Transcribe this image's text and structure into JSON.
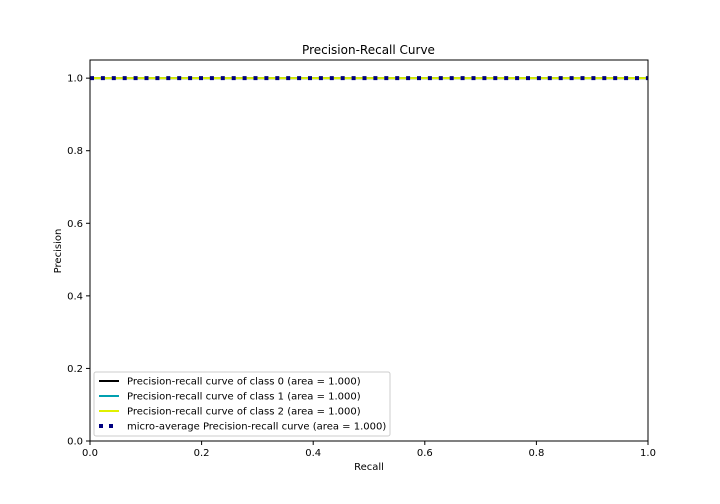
{
  "chart_data": {
    "type": "line",
    "title": "Precision-Recall Curve",
    "xlabel": "Recall",
    "ylabel": "Precision",
    "xlim": [
      0.0,
      1.0
    ],
    "ylim": [
      0.0,
      1.05
    ],
    "xticks": [
      "0.0",
      "0.2",
      "0.4",
      "0.6",
      "0.8",
      "1.0"
    ],
    "yticks": [
      "0.0",
      "0.2",
      "0.4",
      "0.6",
      "0.8",
      "1.0"
    ],
    "grid": false,
    "legend_position": "lower-left",
    "series": [
      {
        "name": "Precision-recall curve of class 0 (area = 1.000)",
        "color": "#000000",
        "style": "solid",
        "x": [
          0.0,
          1.0
        ],
        "y": [
          1.0,
          1.0
        ]
      },
      {
        "name": "Precision-recall curve of class 1 (area = 1.000)",
        "color": "#00a0b0",
        "style": "solid",
        "x": [
          0.0,
          1.0
        ],
        "y": [
          1.0,
          1.0
        ]
      },
      {
        "name": "Precision-recall curve of class 2 (area = 1.000)",
        "color": "#e0f000",
        "style": "solid",
        "x": [
          0.0,
          1.0
        ],
        "y": [
          1.0,
          1.0
        ]
      },
      {
        "name": "micro-average Precision-recall curve (area = 1.000)",
        "color": "#000080",
        "style": "dotted",
        "x": [
          0.0,
          1.0
        ],
        "y": [
          1.0,
          1.0
        ]
      }
    ]
  }
}
